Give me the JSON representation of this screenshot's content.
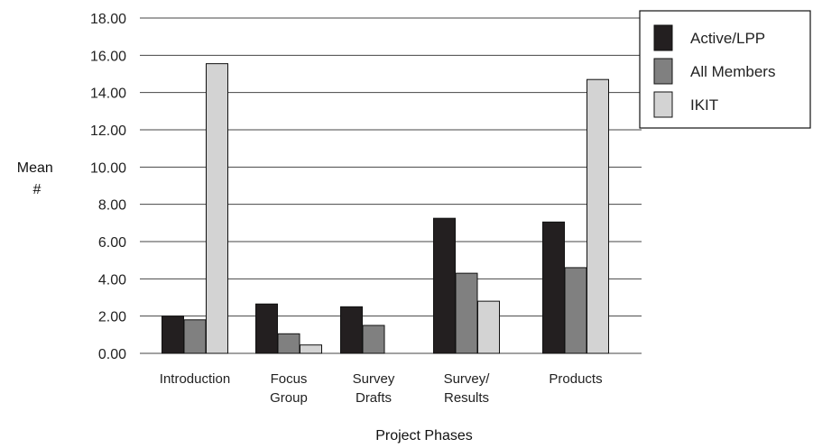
{
  "chart_data": {
    "type": "bar",
    "categories": [
      [
        "Introduction"
      ],
      [
        "Focus",
        "Group"
      ],
      [
        "Survey",
        "Drafts"
      ],
      [
        "Survey/",
        "Results"
      ],
      [
        "Products"
      ]
    ],
    "series": [
      {
        "name": "Active/LPP",
        "color": "#231f20",
        "values": [
          2.0,
          2.65,
          2.5,
          7.25,
          7.05
        ]
      },
      {
        "name": "All Members",
        "color": "#808080",
        "values": [
          1.8,
          1.05,
          1.5,
          4.3,
          4.6
        ]
      },
      {
        "name": "IKIT",
        "color": "#d3d3d3",
        "values": [
          15.55,
          0.45,
          0,
          2.8,
          14.7
        ]
      }
    ],
    "xlabel": "Project Phases",
    "ylabel": [
      "Mean",
      "#"
    ],
    "ylim": [
      0,
      18
    ],
    "yticks": [
      "0.00",
      "2.00",
      "4.00",
      "6.00",
      "8.00",
      "10.00",
      "12.00",
      "14.00",
      "16.00",
      "18.00"
    ],
    "grid": "horizontal",
    "legend_position": "top-right"
  }
}
